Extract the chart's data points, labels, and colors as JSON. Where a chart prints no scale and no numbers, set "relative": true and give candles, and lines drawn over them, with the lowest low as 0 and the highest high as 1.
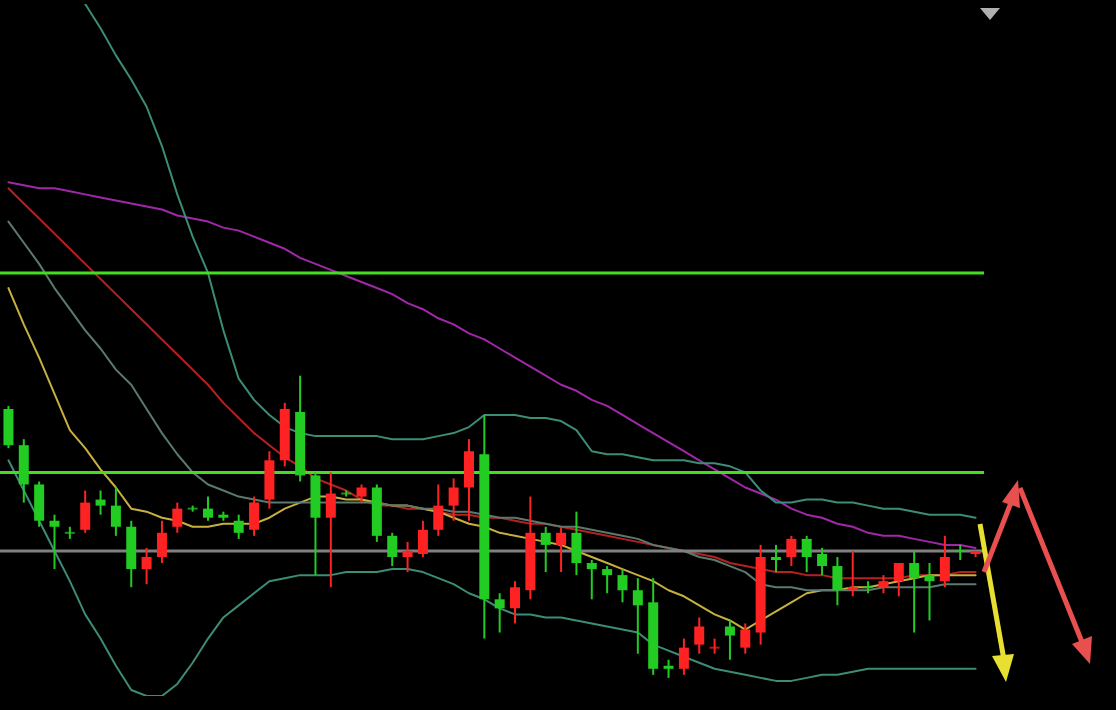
{
  "chart_data": {
    "type": "candlestick",
    "relative": true,
    "categories": [
      null,
      null,
      null,
      null,
      null,
      null,
      null,
      null,
      null,
      null,
      null,
      null,
      null,
      null,
      null,
      null,
      null,
      null,
      null,
      null,
      null,
      null,
      null,
      null,
      null,
      null,
      null,
      null,
      null,
      null,
      null,
      null,
      null,
      null,
      null,
      null,
      null,
      null,
      null,
      null,
      null,
      null,
      null,
      null,
      null,
      null,
      null,
      null,
      null,
      null,
      null,
      null,
      null,
      null,
      null,
      null,
      null,
      null,
      null,
      null,
      null,
      null,
      null,
      null
    ],
    "ohlc": [
      [
        0.89,
        0.9,
        0.76,
        0.77
      ],
      [
        0.77,
        0.79,
        0.58,
        0.64
      ],
      [
        0.64,
        0.65,
        0.5,
        0.52
      ],
      [
        0.52,
        0.54,
        0.36,
        0.5
      ],
      [
        0.48,
        0.5,
        0.46,
        0.48
      ],
      [
        0.49,
        0.62,
        0.48,
        0.58
      ],
      [
        0.59,
        0.62,
        0.54,
        0.57
      ],
      [
        0.57,
        0.63,
        0.47,
        0.5
      ],
      [
        0.5,
        0.52,
        0.3,
        0.36
      ],
      [
        0.36,
        0.43,
        0.31,
        0.4
      ],
      [
        0.4,
        0.52,
        0.38,
        0.48
      ],
      [
        0.5,
        0.58,
        0.48,
        0.56
      ],
      [
        0.56,
        0.57,
        0.55,
        0.56
      ],
      [
        0.56,
        0.6,
        0.52,
        0.53
      ],
      [
        0.54,
        0.55,
        0.52,
        0.53
      ],
      [
        0.52,
        0.54,
        0.46,
        0.48
      ],
      [
        0.49,
        0.6,
        0.47,
        0.58
      ],
      [
        0.59,
        0.75,
        0.56,
        0.72
      ],
      [
        0.72,
        0.91,
        0.7,
        0.89
      ],
      [
        0.88,
        1.0,
        0.65,
        0.67
      ],
      [
        0.67,
        0.68,
        0.34,
        0.53
      ],
      [
        0.53,
        0.68,
        0.3,
        0.61
      ],
      [
        0.61,
        0.62,
        0.6,
        0.61
      ],
      [
        0.6,
        0.64,
        0.58,
        0.63
      ],
      [
        0.63,
        0.64,
        0.45,
        0.47
      ],
      [
        0.47,
        0.48,
        0.37,
        0.4
      ],
      [
        0.4,
        0.45,
        0.35,
        0.42
      ],
      [
        0.41,
        0.52,
        0.4,
        0.49
      ],
      [
        0.49,
        0.64,
        0.47,
        0.57
      ],
      [
        0.57,
        0.66,
        0.52,
        0.63
      ],
      [
        0.63,
        0.79,
        0.52,
        0.75
      ],
      [
        0.74,
        0.87,
        0.13,
        0.26
      ],
      [
        0.26,
        0.28,
        0.15,
        0.23
      ],
      [
        0.23,
        0.32,
        0.18,
        0.3
      ],
      [
        0.29,
        0.6,
        0.26,
        0.48
      ],
      [
        0.48,
        0.5,
        0.35,
        0.44
      ],
      [
        0.44,
        0.5,
        0.35,
        0.48
      ],
      [
        0.48,
        0.55,
        0.34,
        0.38
      ],
      [
        0.38,
        0.39,
        0.26,
        0.36
      ],
      [
        0.36,
        0.37,
        0.28,
        0.34
      ],
      [
        0.34,
        0.36,
        0.25,
        0.29
      ],
      [
        0.29,
        0.33,
        0.08,
        0.24
      ],
      [
        0.25,
        0.33,
        0.01,
        0.03
      ],
      [
        0.04,
        0.06,
        0,
        0.03
      ],
      [
        0.03,
        0.13,
        0.01,
        0.1
      ],
      [
        0.11,
        0.2,
        0.08,
        0.17
      ],
      [
        0.1,
        0.13,
        0.08,
        0.1
      ],
      [
        0.17,
        0.19,
        0.06,
        0.14
      ],
      [
        0.1,
        0.18,
        0.08,
        0.16
      ],
      [
        0.15,
        0.44,
        0.11,
        0.4
      ],
      [
        0.4,
        0.44,
        0.35,
        0.39
      ],
      [
        0.4,
        0.47,
        0.37,
        0.46
      ],
      [
        0.46,
        0.47,
        0.35,
        0.4
      ],
      [
        0.41,
        0.43,
        0.34,
        0.37
      ],
      [
        0.37,
        0.4,
        0.24,
        0.29
      ],
      [
        0.29,
        0.42,
        0.27,
        0.3
      ],
      [
        0.3,
        0.32,
        0.28,
        0.3
      ],
      [
        0.3,
        0.34,
        0.28,
        0.32
      ],
      [
        0.32,
        0.38,
        0.27,
        0.38
      ],
      [
        0.38,
        0.42,
        0.15,
        0.33
      ],
      [
        0.34,
        0.38,
        0.19,
        0.32
      ],
      [
        0.32,
        0.47,
        0.3,
        0.4
      ],
      [
        0.42,
        0.44,
        0.39,
        0.42
      ],
      [
        0.41,
        0.42,
        0.4,
        0.42
      ]
    ],
    "colors": [
      "#22cc22",
      "#22cc22",
      "#22cc22",
      "#22cc22",
      "#22cc22",
      "#ff2222",
      "#22cc22",
      "#22cc22",
      "#22cc22",
      "#ff2222",
      "#ff2222",
      "#ff2222",
      "#22cc22",
      "#22cc22",
      "#22cc22",
      "#22cc22",
      "#ff2222",
      "#ff2222",
      "#ff2222",
      "#22cc22",
      "#22cc22",
      "#ff2222",
      "#22cc22",
      "#ff2222",
      "#22cc22",
      "#22cc22",
      "#ff2222",
      "#ff2222",
      "#ff2222",
      "#ff2222",
      "#ff2222",
      "#22cc22",
      "#22cc22",
      "#ff2222",
      "#ff2222",
      "#22cc22",
      "#ff2222",
      "#22cc22",
      "#22cc22",
      "#22cc22",
      "#22cc22",
      "#22cc22",
      "#22cc22",
      "#22cc22",
      "#ff2222",
      "#ff2222",
      "#ff2222",
      "#22cc22",
      "#ff2222",
      "#ff2222",
      "#22cc22",
      "#ff2222",
      "#22cc22",
      "#22cc22",
      "#22cc22",
      "#ff2222",
      "#22cc22",
      "#ff2222",
      "#ff2222",
      "#22cc22",
      "#22cc22",
      "#ff2222",
      "#22cc22",
      "#ff2222"
    ],
    "series": [
      {
        "type": "line",
        "color": "#a028a8",
        "values": [
          1.64,
          1.63,
          1.62,
          1.62,
          1.61,
          1.6,
          1.59,
          1.58,
          1.57,
          1.56,
          1.55,
          1.53,
          1.52,
          1.51,
          1.49,
          1.48,
          1.46,
          1.44,
          1.42,
          1.39,
          1.37,
          1.35,
          1.33,
          1.31,
          1.29,
          1.27,
          1.24,
          1.22,
          1.19,
          1.17,
          1.14,
          1.12,
          1.09,
          1.06,
          1.03,
          1.0,
          0.97,
          0.95,
          0.92,
          0.9,
          0.87,
          0.84,
          0.81,
          0.78,
          0.75,
          0.72,
          0.69,
          0.66,
          0.63,
          0.61,
          0.59,
          0.56,
          0.54,
          0.53,
          0.51,
          0.5,
          0.48,
          0.47,
          0.47,
          0.46,
          0.45,
          0.44,
          0.44,
          0.43
        ]
      },
      {
        "type": "line",
        "color": "#b82020",
        "values": [
          1.62,
          1.57,
          1.52,
          1.47,
          1.42,
          1.37,
          1.32,
          1.27,
          1.22,
          1.17,
          1.12,
          1.07,
          1.02,
          0.97,
          0.91,
          0.86,
          0.81,
          0.77,
          0.73,
          0.7,
          0.66,
          0.64,
          0.62,
          0.59,
          0.57,
          0.57,
          0.56,
          0.56,
          0.55,
          0.54,
          0.54,
          0.53,
          0.53,
          0.52,
          0.51,
          0.51,
          0.5,
          0.49,
          0.48,
          0.47,
          0.46,
          0.45,
          0.44,
          0.43,
          0.42,
          0.41,
          0.4,
          0.38,
          0.37,
          0.36,
          0.35,
          0.35,
          0.34,
          0.34,
          0.33,
          0.33,
          0.33,
          0.33,
          0.33,
          0.34,
          0.34,
          0.34,
          0.35,
          0.35
        ]
      },
      {
        "type": "line",
        "color": "#c8b040",
        "values": [
          1.29,
          1.17,
          1.06,
          0.94,
          0.82,
          0.76,
          0.69,
          0.63,
          0.56,
          0.55,
          0.53,
          0.52,
          0.5,
          0.5,
          0.51,
          0.51,
          0.51,
          0.53,
          0.56,
          0.58,
          0.6,
          0.6,
          0.59,
          0.59,
          0.58,
          0.57,
          0.57,
          0.56,
          0.55,
          0.53,
          0.51,
          0.5,
          0.48,
          0.47,
          0.46,
          0.45,
          0.44,
          0.42,
          0.4,
          0.38,
          0.36,
          0.34,
          0.32,
          0.29,
          0.27,
          0.24,
          0.21,
          0.19,
          0.16,
          0.19,
          0.22,
          0.25,
          0.28,
          0.29,
          0.29,
          0.3,
          0.3,
          0.31,
          0.32,
          0.33,
          0.34,
          0.34,
          0.34,
          0.34
        ]
      },
      {
        "type": "line",
        "color": "#3c8c78",
        "values": [
          null,
          null,
          null,
          null,
          null,
          2.23,
          2.15,
          2.06,
          1.98,
          1.89,
          1.76,
          1.6,
          1.46,
          1.34,
          1.15,
          0.99,
          0.92,
          0.87,
          0.83,
          0.81,
          0.8,
          0.8,
          0.8,
          0.8,
          0.8,
          0.79,
          0.79,
          0.79,
          0.8,
          0.81,
          0.83,
          0.87,
          0.87,
          0.87,
          0.86,
          0.86,
          0.85,
          0.82,
          0.75,
          0.74,
          0.74,
          0.73,
          0.72,
          0.72,
          0.72,
          0.71,
          0.71,
          0.7,
          0.68,
          0.62,
          0.58,
          0.58,
          0.59,
          0.59,
          0.58,
          0.58,
          0.57,
          0.56,
          0.56,
          0.55,
          0.54,
          0.54,
          0.54,
          0.53
        ]
      },
      {
        "type": "line",
        "color": "#5a7a70",
        "values": [
          1.51,
          1.44,
          1.37,
          1.29,
          1.22,
          1.15,
          1.09,
          1.02,
          0.97,
          0.89,
          0.81,
          0.74,
          0.68,
          0.64,
          0.62,
          0.6,
          0.59,
          0.58,
          0.58,
          0.58,
          0.58,
          0.58,
          0.58,
          0.58,
          0.58,
          0.57,
          0.57,
          0.56,
          0.56,
          0.55,
          0.55,
          0.54,
          0.53,
          0.53,
          0.52,
          0.51,
          0.5,
          0.5,
          0.49,
          0.48,
          0.47,
          0.46,
          0.44,
          0.43,
          0.42,
          0.4,
          0.39,
          0.37,
          0.35,
          0.31,
          0.3,
          0.3,
          0.29,
          0.29,
          0.29,
          0.29,
          0.29,
          0.3,
          0.3,
          0.3,
          0.3,
          0.31,
          0.31,
          0.31
        ]
      },
      {
        "type": "line",
        "color": "#3c8c78",
        "values": [
          0.72,
          0.62,
          0.52,
          0.42,
          0.32,
          0.21,
          0.13,
          0.04,
          -0.04,
          -0.06,
          -0.06,
          -0.02,
          0.05,
          0.13,
          0.2,
          0.24,
          0.28,
          0.32,
          0.33,
          0.34,
          0.34,
          0.34,
          0.35,
          0.35,
          0.35,
          0.36,
          0.36,
          0.35,
          0.33,
          0.31,
          0.28,
          0.26,
          0.23,
          0.21,
          0.21,
          0.2,
          0.2,
          0.19,
          0.18,
          0.17,
          0.16,
          0.15,
          0.11,
          0.09,
          0.07,
          0.05,
          0.03,
          0.02,
          0.01,
          0,
          -0.01,
          -0.01,
          0,
          0.01,
          0.01,
          0.02,
          0.03,
          0.03,
          0.03,
          0.03,
          0.03,
          0.03,
          0.03,
          0.03
        ]
      }
    ],
    "ref_lines": [
      {
        "axis": "y",
        "value": 1.34,
        "color": "#44dd22"
      },
      {
        "axis": "y",
        "value": 0.68,
        "color": "#44dd22"
      },
      {
        "axis": "y",
        "value": 0.42,
        "color": "#808080"
      }
    ]
  }
}
